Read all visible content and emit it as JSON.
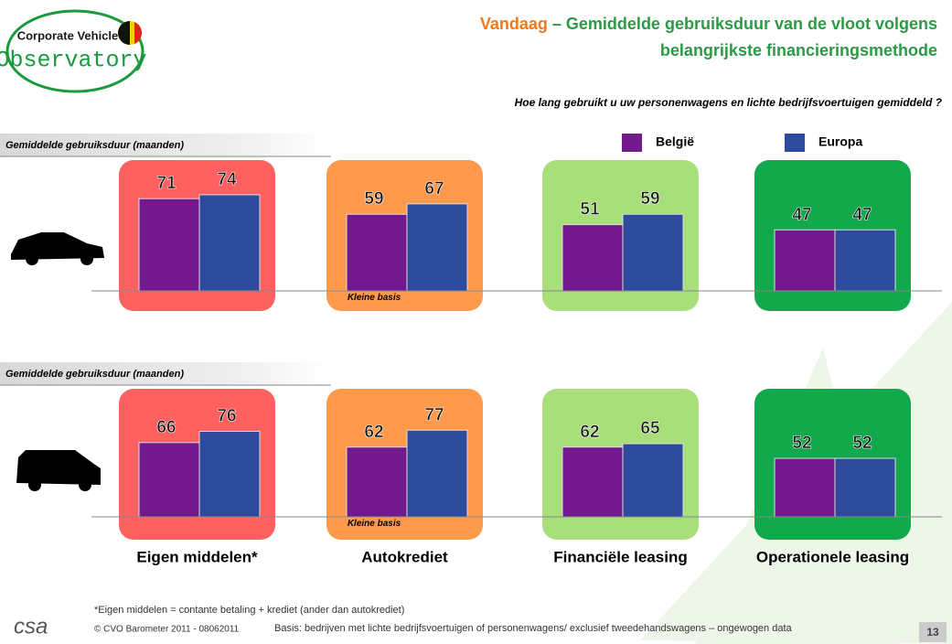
{
  "logo": {
    "line1": "Corporate Vehicle",
    "line2": "Observatory"
  },
  "title": {
    "highlight": "Vandaag",
    "line1": "– Gemiddelde gebruiksduur van de vloot volgens",
    "line2": "belangrijkste financieringsmethode"
  },
  "question": "Hoe lang gebruikt u uw personenwagens en lichte bedrijfsvoertuigen gemiddeld ?",
  "chart_data": [
    {
      "type": "bar",
      "y_label": "Gemiddelde gebruiksduur (maanden)",
      "categories": [
        null,
        null,
        null,
        null
      ],
      "category_colors": [
        "#ff6161",
        "#ff9a4d",
        "#a9df7a",
        "#12a94c"
      ],
      "series": [
        {
          "name": "België",
          "color": "#72198e",
          "values": [
            71,
            59,
            51,
            47
          ]
        },
        {
          "name": "Europa",
          "color": "#2e4a9c",
          "values": [
            74,
            67,
            59,
            47
          ]
        }
      ],
      "ylim": [
        0,
        100
      ],
      "legend": "top-right",
      "annotations": [
        "Kleine basis"
      ]
    },
    {
      "type": "bar",
      "y_label": "Gemiddelde gebruiksduur (maanden)",
      "categories": [
        "Eigen middelen*",
        "Autokrediet",
        "Financiële leasing",
        "Operationele leasing"
      ],
      "category_colors": [
        "#ff6161",
        "#ff9a4d",
        "#a9df7a",
        "#12a94c"
      ],
      "series": [
        {
          "color": "#72198e",
          "values": [
            66,
            62,
            62,
            52
          ]
        },
        {
          "color": "#2e4a9c",
          "values": [
            76,
            77,
            65,
            52
          ]
        }
      ],
      "ylim": [
        0,
        100
      ],
      "annotations": [
        "Kleine basis"
      ]
    }
  ],
  "footer": {
    "note": "*Eigen middelen = contante betaling + krediet (ander dan autokrediet)",
    "copyright": "© CVO Barometer 2011 - 08062011",
    "basis": "Basis: bedrijven met lichte bedrijfsvoertuigen of personenwagens/ exclusief tweedehandswagens – ongewogen data",
    "brand": "csa",
    "page": "13"
  }
}
